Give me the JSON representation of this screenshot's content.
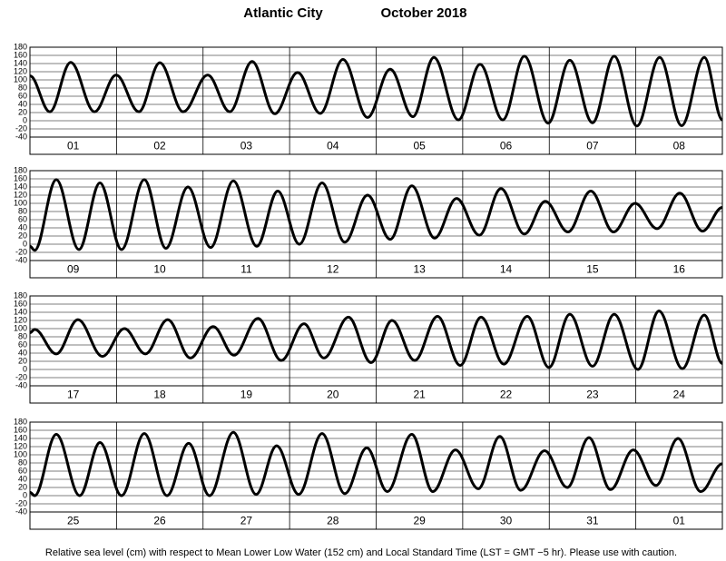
{
  "title": "Atlantic City",
  "subtitle": "October   2018",
  "note": "Relative sea level (cm) with respect to Mean Lower Low Water (152 cm) and Local Standard Time (LST = GMT −5 hr). Please use with caution.",
  "chart_data": [
    {
      "type": "line",
      "color": "#000000",
      "grid": true,
      "xlim": [
        0,
        192
      ],
      "ylim": [
        -40,
        180
      ],
      "yticks": [
        -40,
        -20,
        0,
        20,
        40,
        60,
        80,
        100,
        120,
        140,
        160,
        180
      ],
      "categories": [
        "01",
        "02",
        "03",
        "04",
        "05",
        "06",
        "07",
        "08"
      ],
      "x": [
        0,
        5.5,
        11.3,
        17.9,
        23.9,
        30.2,
        36,
        42.5,
        49.3,
        55.4,
        61.6,
        67.9,
        74.2,
        80.5,
        86.8,
        93.6,
        99.9,
        106.2,
        112,
        118.8,
        124.8,
        131.1,
        137.1,
        143.7,
        149.7,
        156,
        162,
        168.3,
        174.6,
        180.7,
        187,
        192
      ],
      "values": [
        110,
        22,
        143,
        22,
        112,
        22,
        142,
        22,
        112,
        22,
        145,
        17,
        118,
        18,
        150,
        8,
        126,
        10,
        155,
        2,
        138,
        2,
        158,
        -6,
        148,
        -5,
        158,
        -13,
        155,
        -12,
        155,
        2
      ]
    },
    {
      "type": "line",
      "color": "#000000",
      "grid": true,
      "xlim": [
        0,
        192
      ],
      "ylim": [
        -40,
        180
      ],
      "yticks": [
        -40,
        -20,
        0,
        20,
        40,
        60,
        80,
        100,
        120,
        140,
        160,
        180
      ],
      "categories": [
        "09",
        "10",
        "11",
        "12",
        "13",
        "14",
        "15",
        "16"
      ],
      "x": [
        0,
        1.3,
        7.3,
        13.6,
        19.4,
        25.4,
        31.7,
        37.7,
        43.8,
        50.1,
        56.4,
        62.9,
        68.7,
        74.7,
        81,
        87.3,
        93.6,
        99.9,
        105.9,
        112.2,
        118.3,
        124.6,
        130.6,
        137.1,
        142.9,
        149.2,
        155.5,
        161.8,
        167.8,
        173.9,
        180.2,
        186.5,
        192
      ],
      "values": [
        -5,
        -15,
        158,
        -13,
        150,
        -13,
        158,
        -10,
        140,
        -8,
        155,
        -5,
        130,
        0,
        150,
        5,
        120,
        12,
        143,
        15,
        112,
        22,
        136,
        25,
        105,
        30,
        130,
        30,
        100,
        38,
        125,
        32,
        90
      ]
    },
    {
      "type": "line",
      "color": "#000000",
      "grid": true,
      "xlim": [
        0,
        192
      ],
      "ylim": [
        -40,
        180
      ],
      "yticks": [
        -40,
        -20,
        0,
        20,
        40,
        60,
        80,
        100,
        120,
        140,
        160,
        180
      ],
      "categories": [
        "17",
        "18",
        "19",
        "20",
        "21",
        "22",
        "23",
        "24"
      ],
      "x": [
        0,
        1.3,
        7.3,
        13.3,
        20.1,
        26.2,
        32,
        38.2,
        44.5,
        50.8,
        56.6,
        63.2,
        69.7,
        76,
        81.5,
        88.3,
        94.6,
        100.4,
        106.7,
        113,
        119.3,
        125.1,
        131.4,
        137.9,
        143.9,
        149.7,
        156,
        162,
        168.6,
        174.4,
        180.9,
        187,
        192
      ],
      "values": [
        90,
        98,
        38,
        122,
        32,
        100,
        38,
        122,
        28,
        105,
        35,
        125,
        22,
        112,
        28,
        128,
        17,
        120,
        22,
        130,
        10,
        128,
        13,
        130,
        5,
        135,
        8,
        135,
        0,
        143,
        2,
        133,
        15
      ]
    },
    {
      "type": "line",
      "color": "#000000",
      "grid": true,
      "xlim": [
        0,
        192
      ],
      "ylim": [
        -40,
        180
      ],
      "yticks": [
        -40,
        -20,
        0,
        20,
        40,
        60,
        80,
        100,
        120,
        140,
        160,
        180
      ],
      "categories": [
        "25",
        "26",
        "27",
        "28",
        "29",
        "30",
        "31",
        "01"
      ],
      "x": [
        0,
        1.3,
        7.3,
        13.8,
        19.4,
        25.4,
        31.7,
        38,
        44,
        49.8,
        56.4,
        62.7,
        68.4,
        74.5,
        81,
        87.3,
        93.4,
        99.1,
        105.9,
        111.7,
        118,
        124.3,
        130.3,
        136.1,
        142.7,
        149,
        155,
        161,
        167.3,
        173.6,
        179.7,
        186,
        192
      ],
      "values": [
        8,
        0,
        150,
        0,
        130,
        0,
        152,
        0,
        128,
        0,
        155,
        3,
        122,
        3,
        152,
        5,
        117,
        10,
        150,
        10,
        112,
        17,
        145,
        13,
        110,
        20,
        142,
        15,
        112,
        25,
        140,
        10,
        78
      ]
    }
  ]
}
